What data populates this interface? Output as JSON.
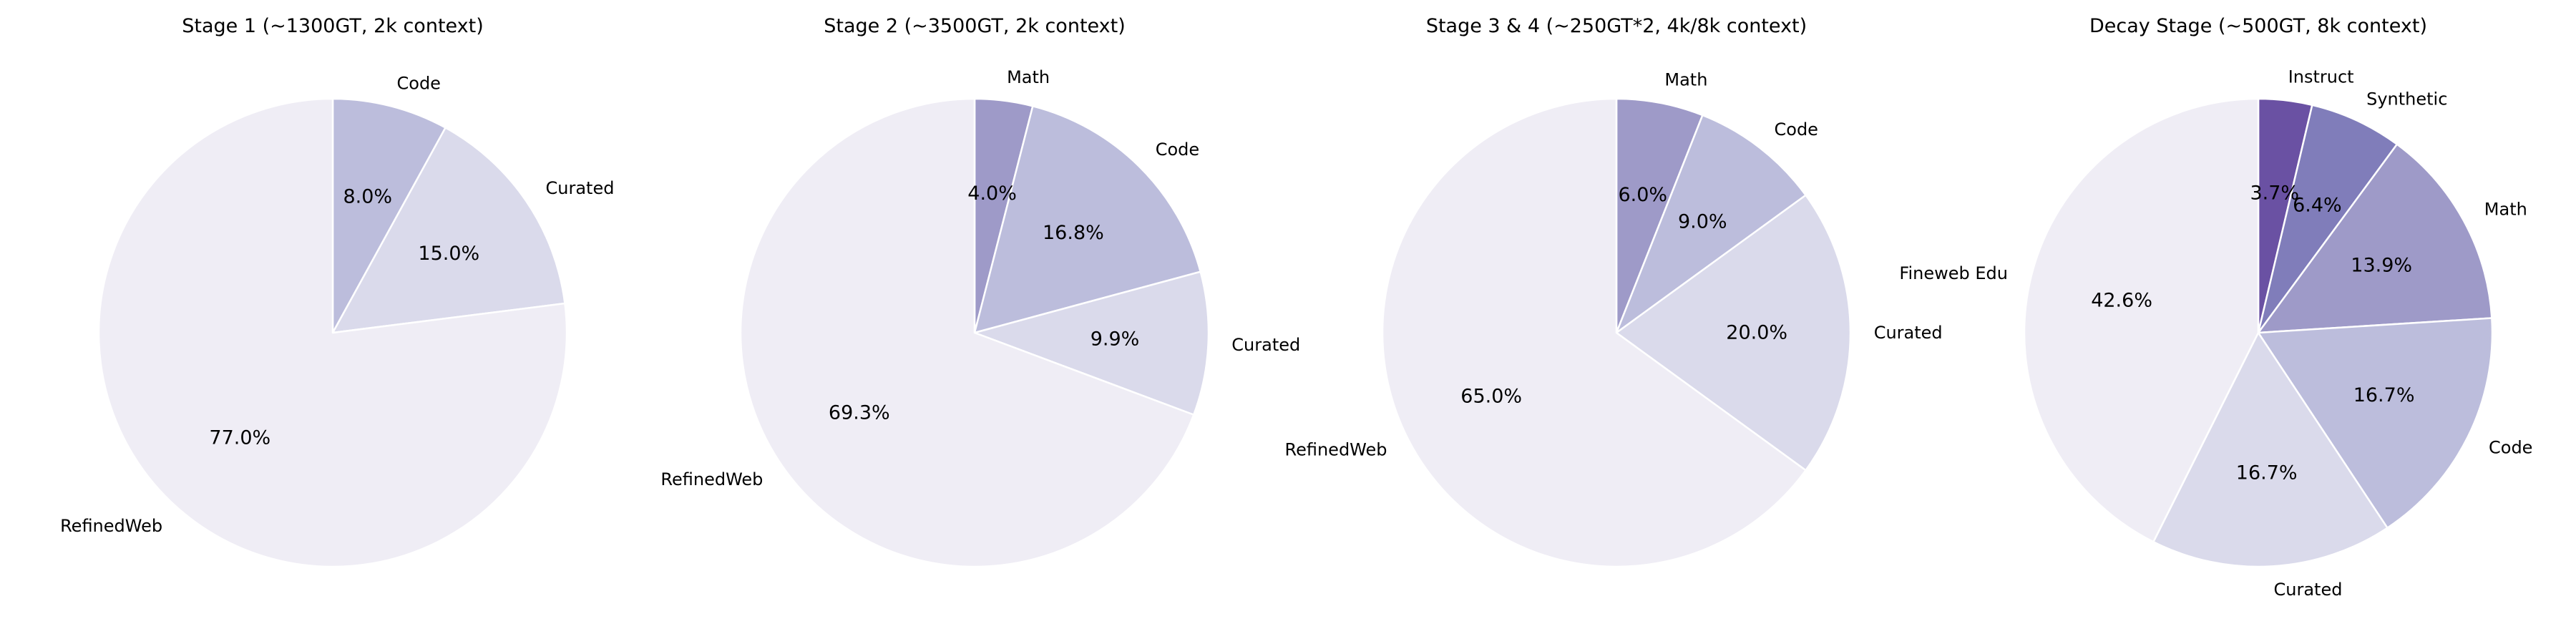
{
  "chart_data": [
    {
      "type": "pie",
      "title": "Stage 1 (~1300GT, 2k context)",
      "start_angle_deg": 90,
      "direction": "clockwise",
      "slices": [
        {
          "label": "Code",
          "value": 8.0,
          "pct_label": "8.0%",
          "color": "#bcbddc"
        },
        {
          "label": "Curated",
          "value": 15.0,
          "pct_label": "15.0%",
          "color": "#dadaeb"
        },
        {
          "label": "RefinedWeb",
          "value": 77.0,
          "pct_label": "77.0%",
          "color": "#efedf5"
        }
      ]
    },
    {
      "type": "pie",
      "title": "Stage 2 (~3500GT, 2k context)",
      "start_angle_deg": 90,
      "direction": "clockwise",
      "slices": [
        {
          "label": "Math",
          "value": 4.0,
          "pct_label": "4.0%",
          "color": "#9e9ac8"
        },
        {
          "label": "Code",
          "value": 16.8,
          "pct_label": "16.8%",
          "color": "#bcbddc"
        },
        {
          "label": "Curated",
          "value": 9.9,
          "pct_label": "9.9%",
          "color": "#dadaeb"
        },
        {
          "label": "RefinedWeb",
          "value": 69.3,
          "pct_label": "69.3%",
          "color": "#efedf5"
        }
      ]
    },
    {
      "type": "pie",
      "title": "Stage 3 & 4 (~250GT*2, 4k/8k context)",
      "start_angle_deg": 90,
      "direction": "clockwise",
      "slices": [
        {
          "label": "Math",
          "value": 6.0,
          "pct_label": "6.0%",
          "color": "#9e9ac8"
        },
        {
          "label": "Code",
          "value": 9.0,
          "pct_label": "9.0%",
          "color": "#bcbddc"
        },
        {
          "label": "Curated",
          "value": 20.0,
          "pct_label": "20.0%",
          "color": "#dadaeb"
        },
        {
          "label": "RefinedWeb",
          "value": 65.0,
          "pct_label": "65.0%",
          "color": "#efedf5"
        }
      ]
    },
    {
      "type": "pie",
      "title": "Decay Stage (~500GT, 8k context)",
      "start_angle_deg": 90,
      "direction": "clockwise",
      "slices": [
        {
          "label": "Instruct",
          "value": 3.7,
          "pct_label": "3.7%",
          "color": "#6a51a3"
        },
        {
          "label": "Synthetic",
          "value": 6.4,
          "pct_label": "6.4%",
          "color": "#807dba"
        },
        {
          "label": "Math",
          "value": 13.9,
          "pct_label": "13.9%",
          "color": "#9e9ac8"
        },
        {
          "label": "Code",
          "value": 16.7,
          "pct_label": "16.7%",
          "color": "#bcbddc"
        },
        {
          "label": "Curated",
          "value": 16.7,
          "pct_label": "16.7%",
          "color": "#dadaeb"
        },
        {
          "label": "Fineweb Edu",
          "value": 42.6,
          "pct_label": "42.6%",
          "color": "#efedf5"
        }
      ]
    }
  ]
}
